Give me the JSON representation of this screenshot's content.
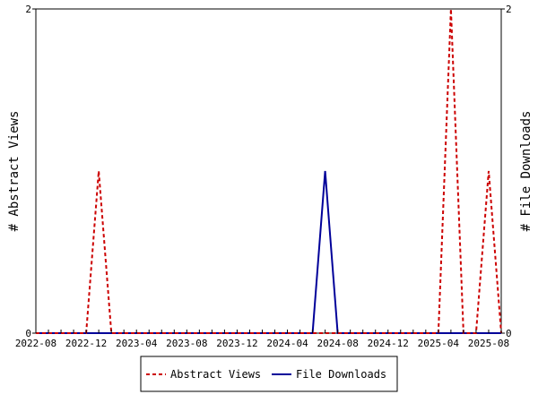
{
  "chart_data": {
    "type": "line",
    "title": "",
    "xlabel": "",
    "ylabel": "# Abstract Views",
    "y2label": "# File Downloads",
    "x": [
      "2022-08",
      "2022-09",
      "2022-10",
      "2022-11",
      "2022-12",
      "2023-01",
      "2023-02",
      "2023-03",
      "2023-04",
      "2023-05",
      "2023-06",
      "2023-07",
      "2023-08",
      "2023-09",
      "2023-10",
      "2023-11",
      "2023-12",
      "2024-01",
      "2024-02",
      "2024-03",
      "2024-04",
      "2024-05",
      "2024-06",
      "2024-07",
      "2024-08",
      "2024-09",
      "2024-10",
      "2024-11",
      "2024-12",
      "2025-01",
      "2025-02",
      "2025-03",
      "2025-04",
      "2025-05",
      "2025-06",
      "2025-07",
      "2025-08",
      "2025-09"
    ],
    "x_tick_labels": [
      "2022-08",
      "2022-12",
      "2023-04",
      "2023-08",
      "2023-12",
      "2024-04",
      "2024-08",
      "2024-12",
      "2025-04",
      "2025-08"
    ],
    "ylim": [
      0,
      2
    ],
    "y_ticks": [
      "0",
      "2"
    ],
    "y2lim": [
      0,
      2
    ],
    "y2_ticks": [
      "0",
      "2"
    ],
    "legend_position": "bottom",
    "series": [
      {
        "name": "Abstract Views",
        "color": "#cc0000",
        "style": "dashed",
        "axis": "left",
        "values": [
          0,
          0,
          0,
          0,
          0,
          1,
          0,
          0,
          0,
          0,
          0,
          0,
          0,
          0,
          0,
          0,
          0,
          0,
          0,
          0,
          0,
          0,
          0,
          0,
          0,
          0,
          0,
          0,
          0,
          0,
          0,
          0,
          0,
          2,
          0,
          0,
          1,
          0
        ]
      },
      {
        "name": "File Downloads",
        "color": "#000099",
        "style": "solid",
        "axis": "right",
        "values": [
          0,
          0,
          0,
          0,
          0,
          0,
          0,
          0,
          0,
          0,
          0,
          0,
          0,
          0,
          0,
          0,
          0,
          0,
          0,
          0,
          0,
          0,
          0,
          1,
          0,
          0,
          0,
          0,
          0,
          0,
          0,
          0,
          0,
          0,
          0,
          0,
          0,
          0
        ]
      }
    ]
  }
}
